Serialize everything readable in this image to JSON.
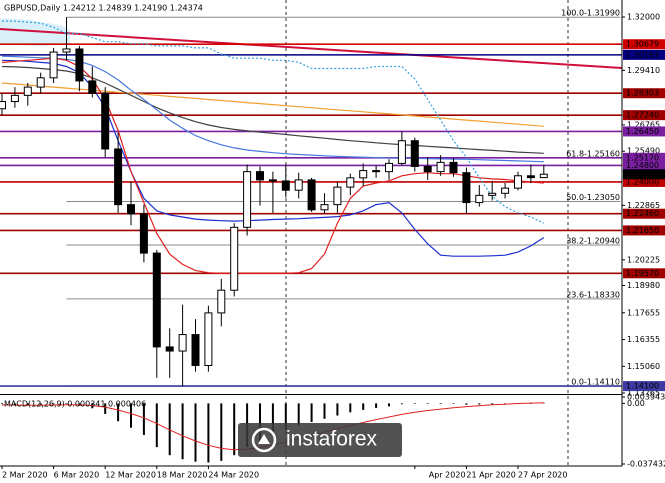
{
  "chart_data": {
    "type": "candlestick",
    "title": "GBPUSD,Daily  1.24212 1.24839 1.24190 1.24374",
    "categories": [
      "2 Mar 2020",
      null,
      null,
      null,
      "6 Mar 2020",
      null,
      null,
      null,
      "12 Mar 2020",
      null,
      null,
      null,
      "18 Mar 2020",
      null,
      null,
      null,
      "24 Mar 2020",
      null,
      null,
      null,
      null,
      null,
      null,
      null,
      null,
      null,
      null,
      null,
      null,
      null,
      null,
      null,
      "Apr 2020",
      null,
      null,
      null,
      "21 Apr 2020",
      null,
      null,
      null,
      "27 Apr 2020",
      null,
      null
    ],
    "open": [
      1.2755,
      1.279,
      1.282,
      1.286,
      1.2905,
      1.303,
      1.3045,
      1.289,
      1.283,
      1.256,
      1.229,
      1.2245,
      1.2055,
      1.16,
      1.158,
      1.166,
      1.151,
      1.1765,
      1.1875,
      1.218,
      1.245,
      1.241,
      1.2405,
      1.236,
      1.241,
      1.2265,
      1.229,
      1.2375,
      1.242,
      1.2455,
      1.245,
      1.249,
      1.26,
      1.2475,
      1.245,
      1.2495,
      1.2445,
      1.23,
      1.2335,
      1.2345,
      1.237,
      1.243,
      1.24212
    ],
    "high": [
      1.283,
      1.286,
      1.288,
      1.293,
      1.305,
      1.3199,
      1.306,
      1.296,
      1.286,
      1.264,
      1.24,
      1.229,
      1.207,
      1.169,
      1.1805,
      1.1735,
      1.18,
      1.193,
      1.22,
      1.2485,
      1.2475,
      1.245,
      1.2485,
      1.2445,
      1.242,
      1.2345,
      1.24,
      1.244,
      1.249,
      1.248,
      1.251,
      1.2645,
      1.2615,
      1.252,
      1.253,
      1.2515,
      1.247,
      1.2385,
      1.2405,
      1.2395,
      1.245,
      1.2485,
      1.24839
    ],
    "low": [
      1.2725,
      1.276,
      1.277,
      1.283,
      1.288,
      1.299,
      1.284,
      1.281,
      1.252,
      1.225,
      1.219,
      1.201,
      1.145,
      1.145,
      1.1409,
      1.148,
      1.148,
      1.17,
      1.1845,
      1.214,
      1.2285,
      1.225,
      1.2325,
      1.232,
      1.2255,
      1.2245,
      1.225,
      1.2335,
      1.238,
      1.242,
      1.241,
      1.248,
      1.245,
      1.241,
      1.243,
      1.2425,
      1.2245,
      1.228,
      1.231,
      1.232,
      1.236,
      1.2395,
      1.2419
    ],
    "close": [
      1.279,
      1.282,
      1.286,
      1.2905,
      1.303,
      1.3045,
      1.289,
      1.283,
      1.256,
      1.229,
      1.2245,
      1.2055,
      1.16,
      1.158,
      1.166,
      1.151,
      1.1765,
      1.1875,
      1.218,
      1.245,
      1.241,
      1.2405,
      1.236,
      1.241,
      1.2265,
      1.229,
      1.2375,
      1.242,
      1.2455,
      1.245,
      1.249,
      1.26,
      1.2475,
      1.245,
      1.2495,
      1.2445,
      1.23,
      1.2335,
      1.2345,
      1.237,
      1.243,
      1.2421,
      1.24374
    ],
    "bull_color": "#ffffff",
    "bear_color": "#000000",
    "ylim": [
      1.13765,
      1.32824
    ],
    "yticks": [
      {
        "value": 1.32,
        "label": "1.32000"
      },
      {
        "value": 1.2941,
        "label": "1.29410"
      },
      1.26765,
      {
        "value": 1.2549,
        "label": "1.25490"
      },
      1.22865,
      1.20225,
      {
        "value": 1.1898,
        "label": "1.18980"
      },
      1.17655,
      1.16355,
      {
        "value": 1.1506,
        "label": "1.15060"
      },
      1.13765
    ],
    "levels": [
      {
        "value": 1.30679,
        "color": "#d00000"
      },
      {
        "value": 1.30163,
        "color": "#000080"
      },
      {
        "value": 1.28303,
        "color": "#a00000"
      },
      {
        "value": 1.2724,
        "label": "1.27240",
        "color": "#a00000"
      },
      {
        "value": 1.2645,
        "label": "1.26450",
        "color": "#7a1fa0"
      },
      {
        "value": 1.2517,
        "label": "1.25170",
        "color": "#7a1fa0"
      },
      {
        "value": 1.248,
        "label": "1.24800",
        "color": "#7a1fa0"
      },
      {
        "value": 1.24,
        "label": "1.24000",
        "color": "#c00000"
      },
      {
        "value": 1.2246,
        "label": "1.22460",
        "color": "#a00000"
      },
      {
        "value": 1.2165,
        "label": "1.21650",
        "color": "#a00000"
      },
      {
        "value": 1.1957,
        "label": "1.19570",
        "color": "#a00000"
      },
      {
        "value": 1.141,
        "label": "1.14100",
        "color": "#3a3aa0"
      }
    ],
    "fib": [
      {
        "value": 1.3199,
        "label": "100.0-1.31990"
      },
      {
        "value": 1.2516,
        "label": "61.8-1.25160"
      },
      {
        "value": 1.2305,
        "label": "50.0-1.23050"
      },
      {
        "value": 1.2094,
        "label": "38.2-1.20940"
      },
      {
        "value": 1.1833,
        "label": "23.6-1.18330"
      },
      {
        "value": 1.1411,
        "label": "0.0-1.14110"
      }
    ],
    "series": [
      {
        "color": "#f0a030",
        "values": [
          1.288,
          1.2875,
          1.287,
          1.2865,
          1.286,
          1.2855,
          1.285,
          1.2845,
          1.284,
          1.2835,
          1.283,
          1.2825,
          1.282,
          1.2815,
          1.281,
          1.2805,
          1.28,
          1.2795,
          1.279,
          1.2785,
          1.278,
          1.2775,
          1.277,
          1.2765,
          1.276,
          1.2755,
          1.275,
          1.2745,
          1.274,
          1.2735,
          1.273,
          1.2725,
          1.272,
          1.2715,
          1.271,
          1.2705,
          1.27,
          1.2695,
          1.269,
          1.2685,
          1.268,
          1.2675,
          1.267
        ]
      },
      {
        "color": "#404040",
        "values": [
          1.296,
          1.2958,
          1.2955,
          1.295,
          1.2945,
          1.2938,
          1.2925,
          1.2905,
          1.288,
          1.285,
          1.282,
          1.279,
          1.276,
          1.2735,
          1.2712,
          1.2692,
          1.2676,
          1.2664,
          1.2655,
          1.2648,
          1.2642,
          1.2636,
          1.263,
          1.2624,
          1.2618,
          1.2612,
          1.2606,
          1.26,
          1.2595,
          1.259,
          1.2585,
          1.2581,
          1.2577,
          1.2573,
          1.2569,
          1.2565,
          1.2561,
          1.2557,
          1.2553,
          1.2549,
          1.2545,
          1.2542,
          1.2539
        ]
      },
      {
        "color": "#4a78e0",
        "values": [
          1.301,
          1.3008,
          1.3005,
          1.3002,
          1.3,
          1.2995,
          1.2985,
          1.2965,
          1.2935,
          1.2895,
          1.2845,
          1.28,
          1.275,
          1.27,
          1.266,
          1.2625,
          1.26,
          1.258,
          1.2565,
          1.2555,
          1.2548,
          1.2542,
          1.2537,
          1.2533,
          1.253,
          1.2527,
          1.2524,
          1.2522,
          1.252,
          1.2518,
          1.2516,
          1.2515,
          1.2514,
          1.2513,
          1.2512,
          1.2511,
          1.251,
          1.2508,
          1.2506,
          1.2504,
          1.2502,
          1.25,
          1.2498
        ]
      },
      {
        "color": "#1c2fd0",
        "values": [
          1.299,
          1.2988,
          1.2985,
          1.298,
          1.2975,
          1.296,
          1.293,
          1.286,
          1.276,
          1.26,
          1.245,
          1.232,
          1.226,
          1.224,
          1.223,
          1.222,
          1.2215,
          1.2212,
          1.221,
          1.2212,
          1.2215,
          1.2218,
          1.222,
          1.2222,
          1.2225,
          1.2228,
          1.2232,
          1.224,
          1.226,
          1.229,
          1.23,
          1.225,
          1.217,
          1.21,
          1.2045,
          1.204,
          1.204,
          1.204,
          1.2042,
          1.2045,
          1.206,
          1.209,
          1.213
        ]
      },
      {
        "color": "#e02020",
        "values": [
          1.298,
          1.2985,
          1.299,
          1.2995,
          1.3,
          1.299,
          1.296,
          1.29,
          1.28,
          1.265,
          1.245,
          1.23,
          1.215,
          1.205,
          1.2,
          1.197,
          1.196,
          1.1957,
          1.1957,
          1.1957,
          1.1957,
          1.1957,
          1.1957,
          1.196,
          1.198,
          1.205,
          1.22,
          1.232,
          1.238,
          1.2395,
          1.2405,
          1.243,
          1.244,
          1.2445,
          1.244,
          1.244,
          1.243,
          1.242,
          1.2415,
          1.2412,
          1.2405,
          1.24,
          1.2395
        ]
      },
      {
        "color": "#30a0e0",
        "dash": true,
        "values": [
          1.318,
          1.318,
          1.3175,
          1.317,
          1.315,
          1.312,
          1.312,
          1.31,
          1.308,
          1.308,
          1.307,
          1.307,
          1.306,
          1.306,
          1.306,
          1.305,
          1.305,
          1.302,
          1.3,
          1.3,
          1.3,
          1.299,
          1.299,
          1.298,
          1.295,
          1.295,
          1.295,
          1.295,
          1.295,
          1.296,
          1.296,
          1.296,
          1.29,
          1.28,
          1.27,
          1.26,
          1.252,
          1.242,
          1.233,
          1.228,
          1.225,
          1.223,
          1.22
        ]
      }
    ],
    "macd": {
      "label": "MACD(12,26,9) 0.000341 0.000406",
      "ylim": [
        -0.037432,
        0.003943
      ],
      "yticks": [
        0.003943,
        {
          "value": 0,
          "label": "0.00"
        },
        -0.037432
      ],
      "histogram_color": "#000000",
      "histogram": [
        -0.0005,
        -0.001,
        -0.0012,
        -0.001,
        -0.0005,
        -0.0002,
        -0.0015,
        -0.003,
        -0.0065,
        -0.011,
        -0.015,
        -0.0195,
        -0.027,
        -0.032,
        -0.0345,
        -0.036,
        -0.0365,
        -0.0355,
        -0.032,
        -0.027,
        -0.023,
        -0.0195,
        -0.0165,
        -0.0135,
        -0.0115,
        -0.0095,
        -0.0075,
        -0.0055,
        -0.004,
        -0.0028,
        -0.0018,
        -0.0005,
        -0.0002,
        -0.0003,
        -0.0002,
        -0.0003,
        -0.0008,
        -0.0007,
        -0.0006,
        -0.0004,
        -0.0002,
        0.0001,
        0.000341
      ],
      "signal_color": "#e02020",
      "signal": [
        -0.001,
        -0.001,
        -0.0011,
        -0.0011,
        -0.001,
        -0.0008,
        -0.0009,
        -0.0013,
        -0.0023,
        -0.0041,
        -0.0063,
        -0.0089,
        -0.0125,
        -0.0164,
        -0.02,
        -0.0232,
        -0.0259,
        -0.0278,
        -0.0286,
        -0.0283,
        -0.0272,
        -0.0257,
        -0.0239,
        -0.0218,
        -0.0198,
        -0.0177,
        -0.0157,
        -0.0137,
        -0.0118,
        -0.01,
        -0.0084,
        -0.0068,
        -0.0055,
        -0.0044,
        -0.0035,
        -0.0027,
        -0.002,
        -0.0014,
        -0.0009,
        -0.0005,
        -0.0001,
        0.0002,
        0.000406
      ]
    },
    "watermark": "instaforex"
  }
}
